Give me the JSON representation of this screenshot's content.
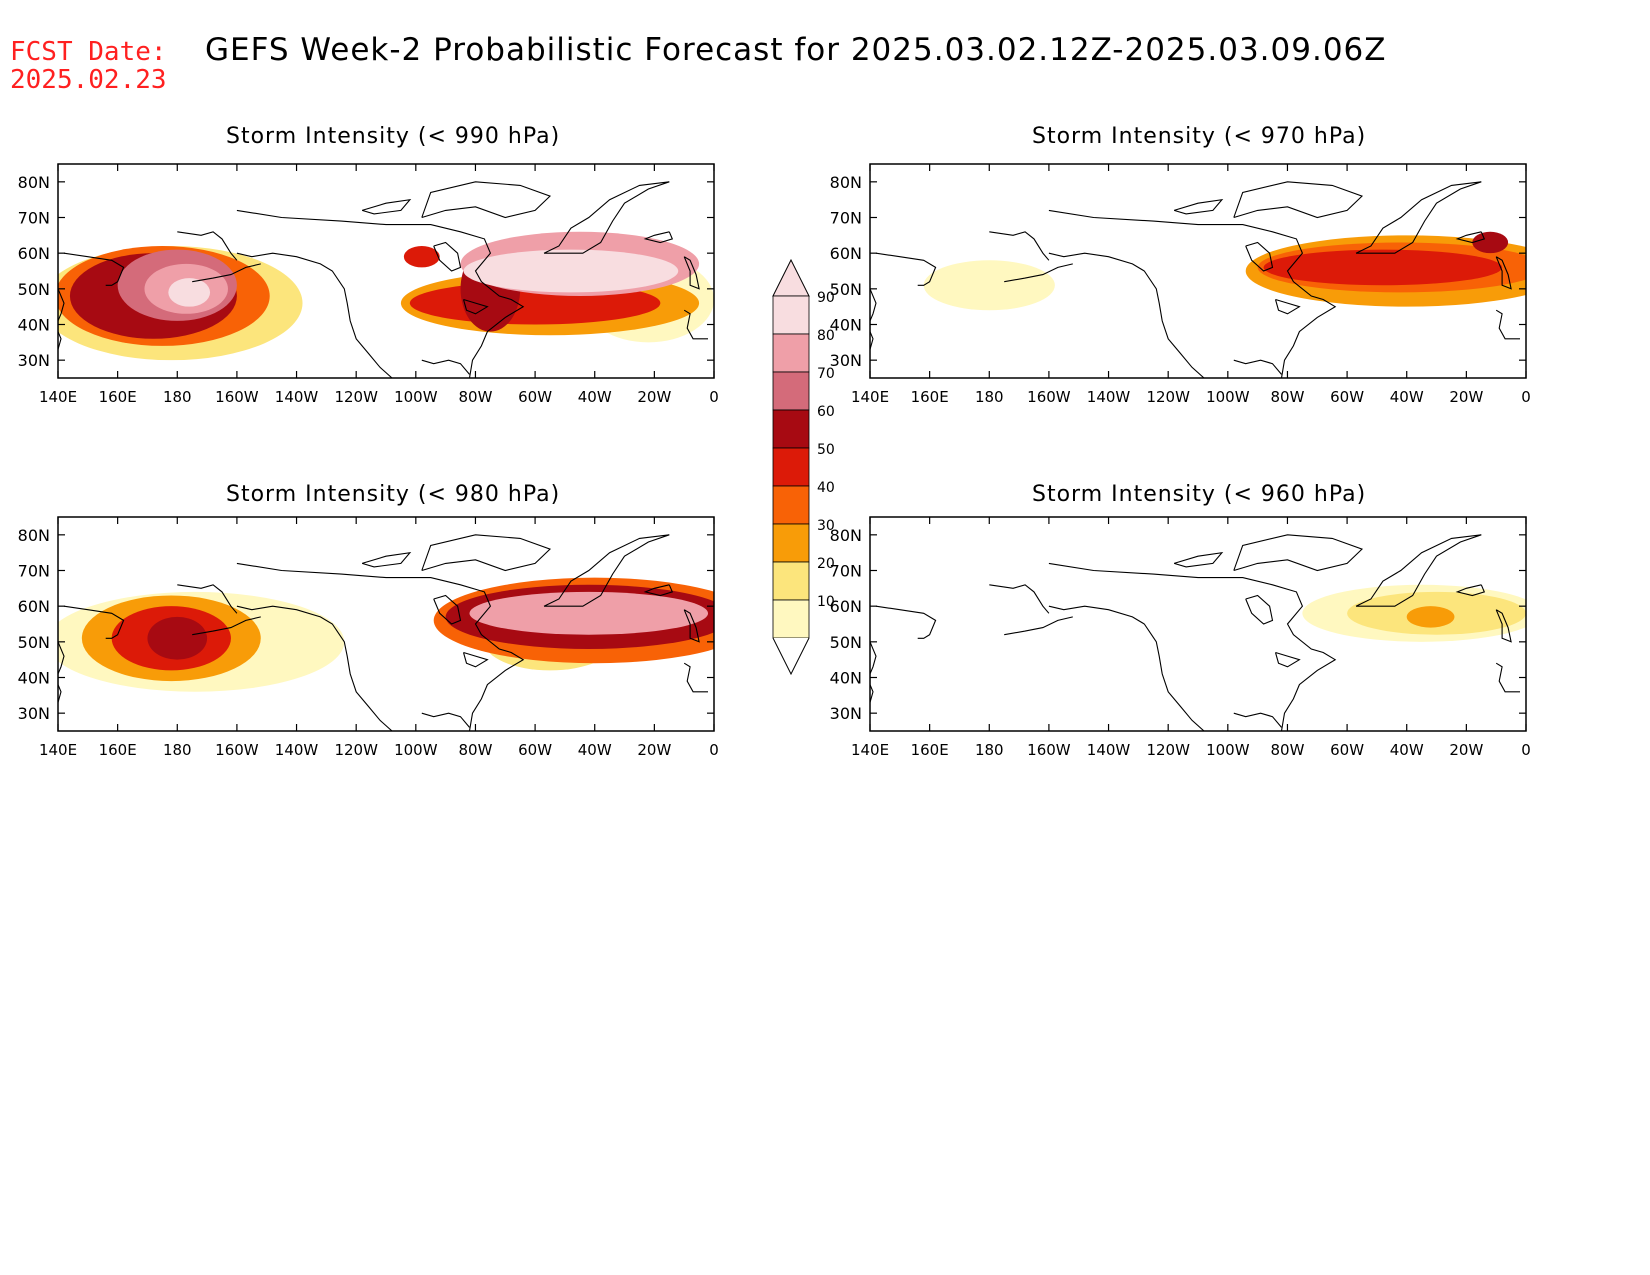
{
  "header": {
    "fcst_label": "FCST Date:",
    "fcst_date": "2025.02.23",
    "title": "GEFS Week-2 Probabilistic Forecast for 2025.03.02.12Z-2025.03.09.06Z"
  },
  "axes": {
    "lat_labels": [
      "80N",
      "70N",
      "60N",
      "50N",
      "40N",
      "30N"
    ],
    "lat_values": [
      80,
      70,
      60,
      50,
      40,
      30
    ],
    "lat_range": [
      25,
      85
    ],
    "lon_labels": [
      "140E",
      "160E",
      "180",
      "160W",
      "140W",
      "120W",
      "100W",
      "80W",
      "60W",
      "40W",
      "20W",
      "0"
    ],
    "lon_values": [
      140,
      160,
      180,
      200,
      220,
      240,
      260,
      280,
      300,
      320,
      340,
      360
    ],
    "lon_range": [
      140,
      360
    ]
  },
  "colorbar": {
    "levels": [
      "90",
      "80",
      "70",
      "60",
      "50",
      "40",
      "30",
      "20",
      "10"
    ],
    "colors": [
      "#f8dde0",
      "#ef9fa8",
      "#d46b7a",
      "#a70a12",
      "#dc1a08",
      "#f86206",
      "#f89c08",
      "#fce57c",
      "#fff8c0"
    ]
  },
  "chart_data": [
    {
      "type": "heatmap",
      "title": "Storm Intensity (< 990 hPa)",
      "blobs": [
        {
          "lon": 180,
          "lat": 51,
          "rx": 20,
          "ry": 10,
          "level": 2
        },
        {
          "lon": 183,
          "lat": 50,
          "rx": 14,
          "ry": 7,
          "level": 1
        },
        {
          "lon": 184,
          "lat": 49,
          "rx": 7,
          "ry": 4,
          "level": 0
        },
        {
          "lon": 172,
          "lat": 48,
          "rx": 28,
          "ry": 12,
          "level": 3
        },
        {
          "lon": 175,
          "lat": 48,
          "rx": 36,
          "ry": 14,
          "level": 5
        },
        {
          "lon": 178,
          "lat": 46,
          "rx": 44,
          "ry": 16,
          "level": 7
        },
        {
          "lon": 312,
          "lat": 55,
          "rx": 36,
          "ry": 6,
          "level": 0
        },
        {
          "lon": 315,
          "lat": 57,
          "rx": 40,
          "ry": 9,
          "level": 1
        },
        {
          "lon": 285,
          "lat": 50,
          "rx": 10,
          "ry": 12,
          "level": 3
        },
        {
          "lon": 300,
          "lat": 46,
          "rx": 42,
          "ry": 6,
          "level": 4
        },
        {
          "lon": 305,
          "lat": 46,
          "rx": 50,
          "ry": 9,
          "level": 6
        },
        {
          "lon": 262,
          "lat": 59,
          "rx": 6,
          "ry": 3,
          "level": 4
        },
        {
          "lon": 338,
          "lat": 47,
          "rx": 22,
          "ry": 12,
          "level": 8
        }
      ]
    },
    {
      "type": "heatmap",
      "title": "Storm Intensity (< 970 hPa)",
      "blobs": [
        {
          "lon": 180,
          "lat": 51,
          "rx": 22,
          "ry": 7,
          "level": 8
        },
        {
          "lon": 312,
          "lat": 56,
          "rx": 40,
          "ry": 5,
          "level": 4
        },
        {
          "lon": 318,
          "lat": 56,
          "rx": 48,
          "ry": 7,
          "level": 5
        },
        {
          "lon": 320,
          "lat": 55,
          "rx": 54,
          "ry": 10,
          "level": 6
        },
        {
          "lon": 348,
          "lat": 63,
          "rx": 6,
          "ry": 3,
          "level": 3
        }
      ]
    },
    {
      "type": "heatmap",
      "title": "Storm Intensity (< 980 hPa)",
      "blobs": [
        {
          "lon": 180,
          "lat": 51,
          "rx": 10,
          "ry": 6,
          "level": 3
        },
        {
          "lon": 178,
          "lat": 51,
          "rx": 20,
          "ry": 9,
          "level": 4
        },
        {
          "lon": 178,
          "lat": 51,
          "rx": 30,
          "ry": 12,
          "level": 6
        },
        {
          "lon": 186,
          "lat": 50,
          "rx": 50,
          "ry": 14,
          "level": 8
        },
        {
          "lon": 318,
          "lat": 58,
          "rx": 40,
          "ry": 6,
          "level": 1
        },
        {
          "lon": 318,
          "lat": 57,
          "rx": 48,
          "ry": 9,
          "level": 3
        },
        {
          "lon": 320,
          "lat": 56,
          "rx": 54,
          "ry": 12,
          "level": 5
        },
        {
          "lon": 305,
          "lat": 50,
          "rx": 22,
          "ry": 8,
          "level": 7
        }
      ]
    },
    {
      "type": "heatmap",
      "title": "Storm Intensity (< 960 hPa)",
      "blobs": [
        {
          "lon": 328,
          "lat": 57,
          "rx": 8,
          "ry": 3,
          "level": 6
        },
        {
          "lon": 330,
          "lat": 58,
          "rx": 30,
          "ry": 6,
          "level": 7
        },
        {
          "lon": 325,
          "lat": 58,
          "rx": 40,
          "ry": 8,
          "level": 8
        }
      ]
    }
  ]
}
